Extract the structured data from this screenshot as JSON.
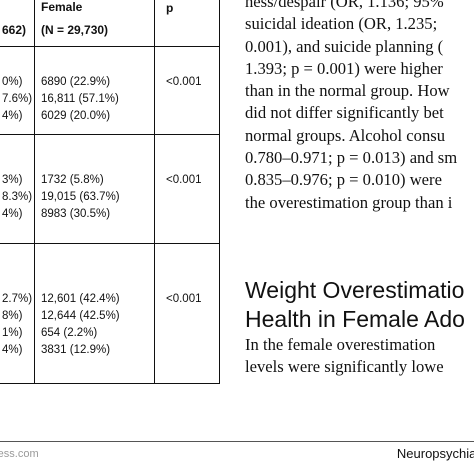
{
  "table": {
    "headers": {
      "group_fragment": "662)",
      "female_line1": "Female",
      "female_line2": "(N = 29,730)",
      "p": "p"
    },
    "groups": [
      {
        "left_fragments": [
          "0%)",
          "7.6%)",
          "4%)"
        ],
        "female_values": [
          "6890 (22.9%)",
          "16,811 (57.1%)",
          "6029 (20.0%)"
        ],
        "p_value": "<0.001"
      },
      {
        "left_fragments": [
          "3%)",
          "8.3%)",
          "4%)"
        ],
        "female_values": [
          "1732 (5.8%)",
          "19,015 (63.7%)",
          "8983 (30.5%)"
        ],
        "p_value": "<0.001"
      },
      {
        "left_fragments": [
          "2.7%)",
          "8%)",
          "1%)",
          "4%)"
        ],
        "female_values": [
          "12,601 (42.4%)",
          "12,644 (42.5%)",
          "654 (2.2%)",
          "3831 (12.9%)"
        ],
        "p_value": "<0.001"
      }
    ]
  },
  "body_lines": [
    "ness/despair (OR, 1.136; 95%",
    "suicidal ideation (OR, 1.235;",
    "0.001), and suicide planning (",
    "1.393; p = 0.001) were higher",
    "than in the normal group. How",
    "did not differ significantly bet",
    "normal groups. Alcohol consu",
    "0.780–0.971; p = 0.013) and sm",
    "0.835–0.976; p = 0.010) were",
    "the overestimation group than i"
  ],
  "section_heading": [
    "Weight Overestimatio",
    "Health in Female Ado"
  ],
  "section_lines": [
    "In the female overestimation",
    "levels were significantly lowe"
  ],
  "footer": {
    "left": "ress.com",
    "right": "Neuropsychiat"
  }
}
